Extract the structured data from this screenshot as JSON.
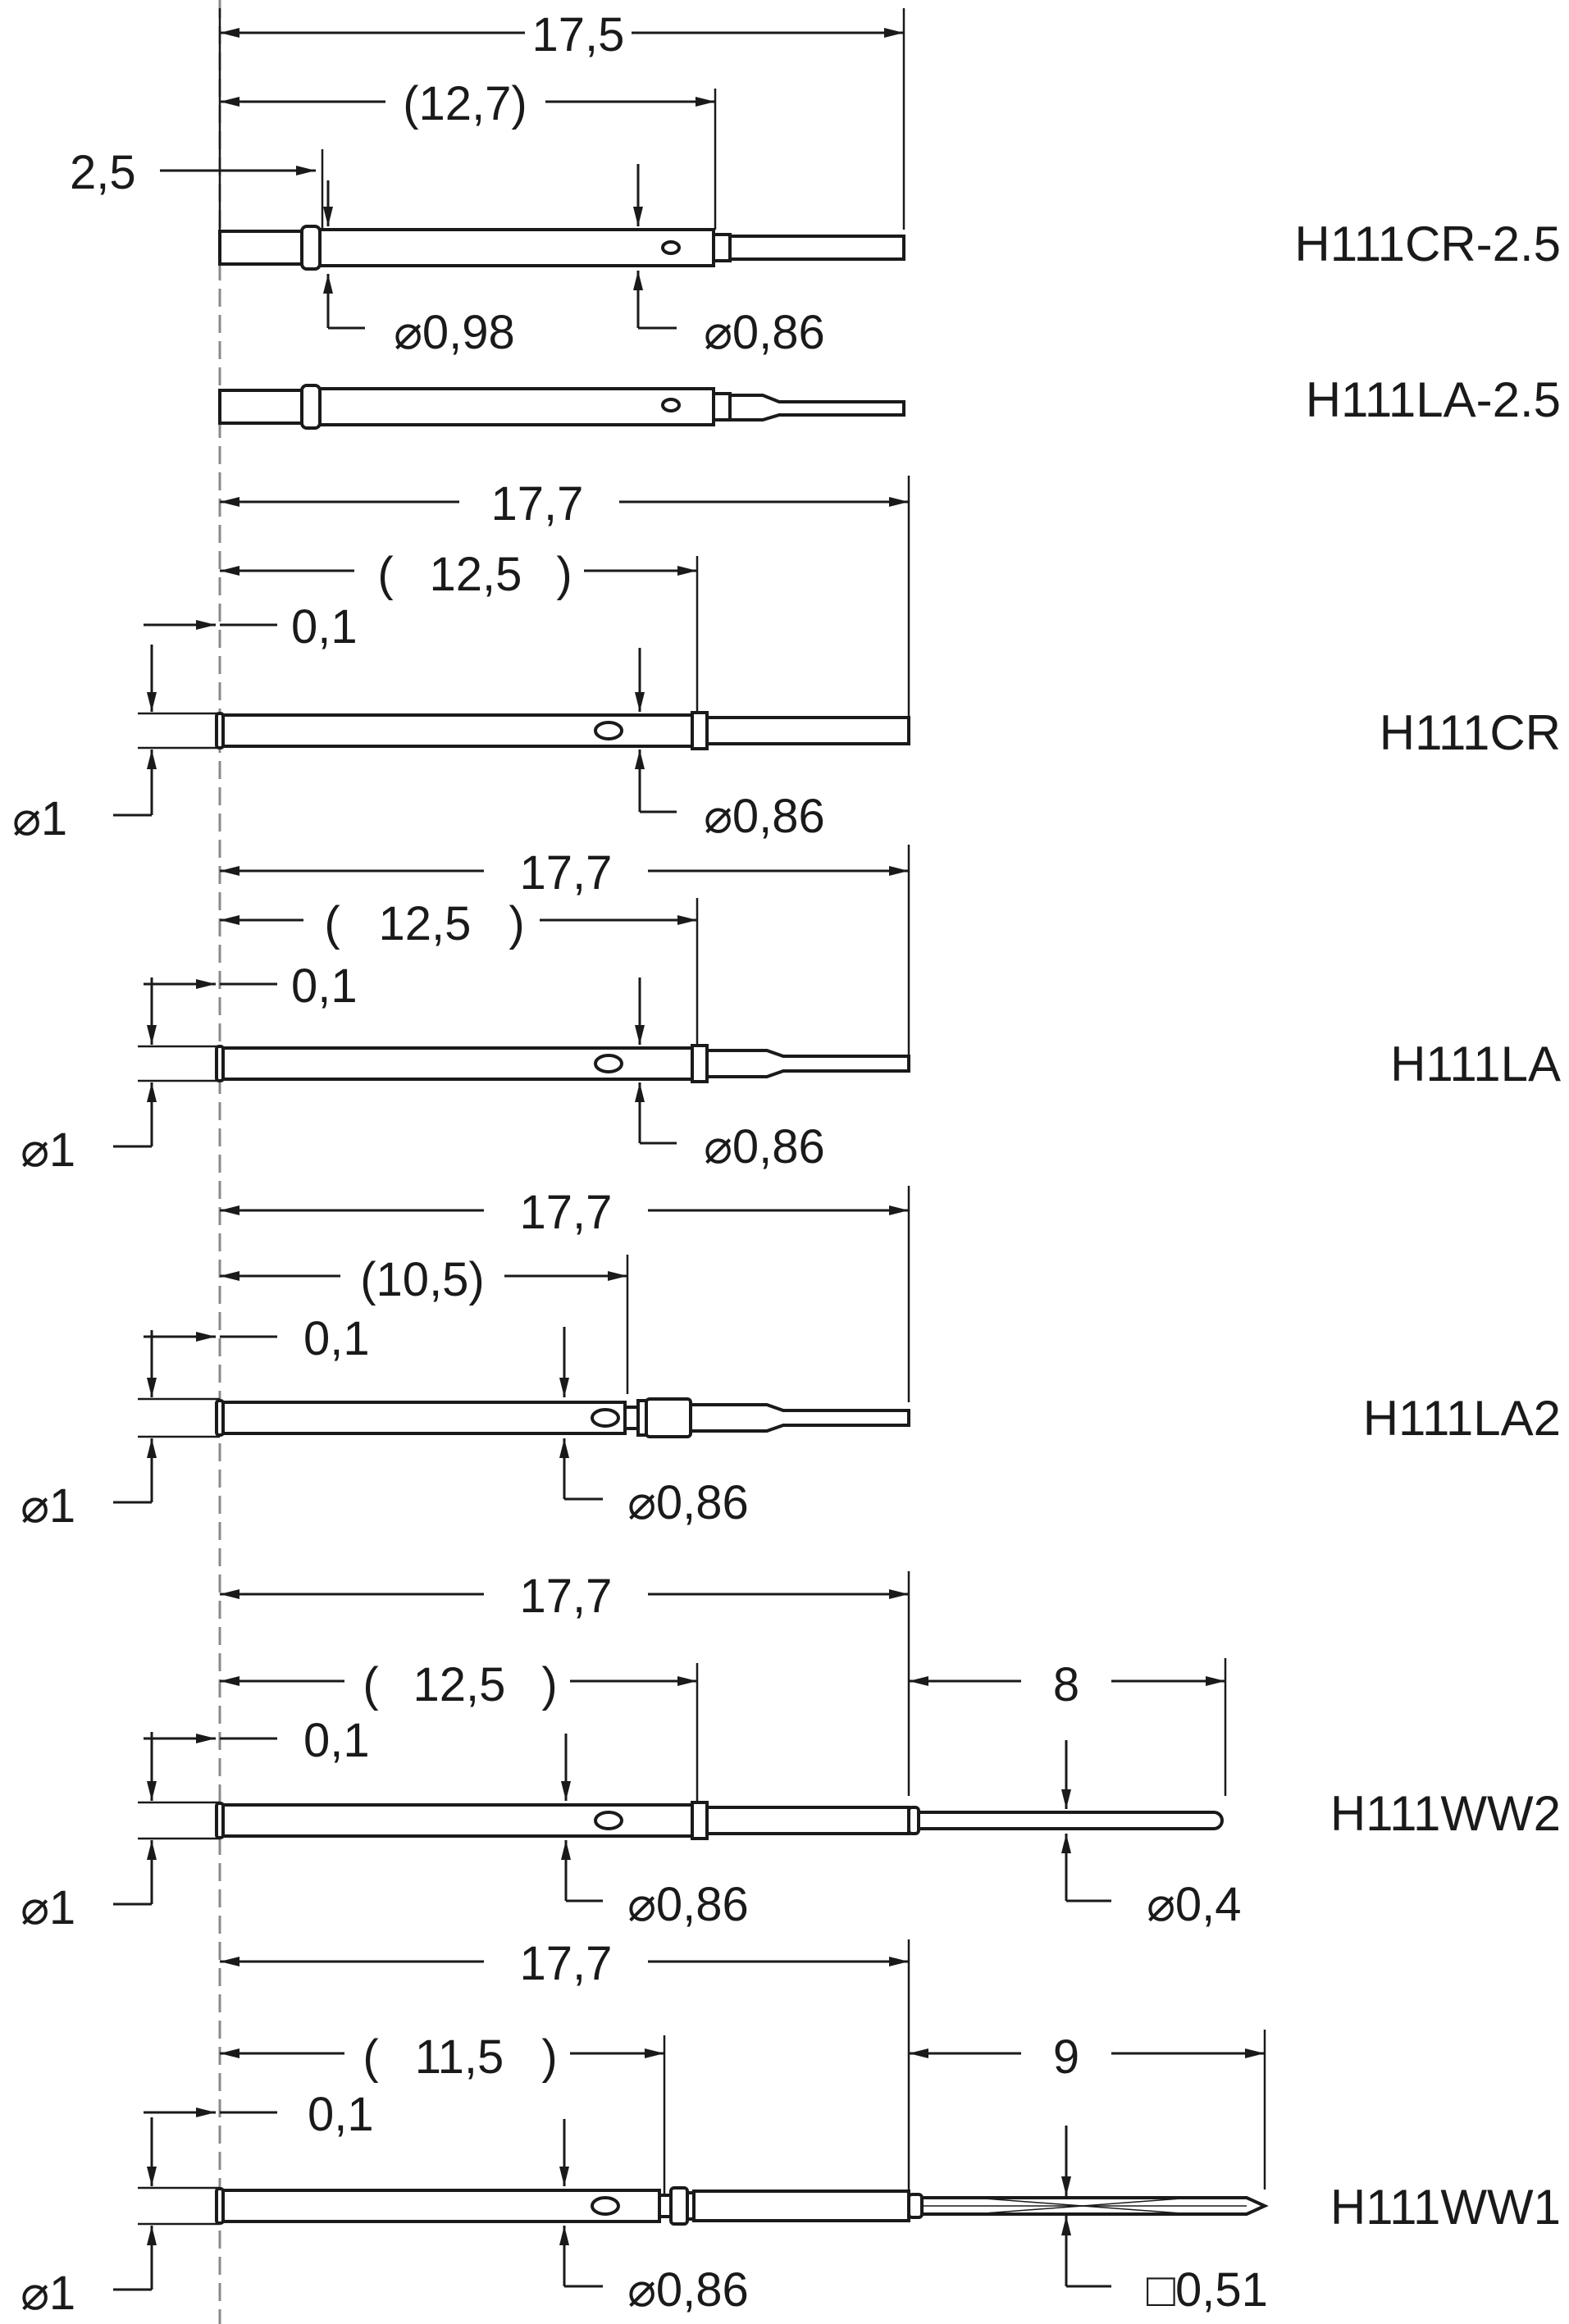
{
  "parts": [
    {
      "model": "H111CR-2.5",
      "dims": {
        "overall": "17,5",
        "ref": "(12,7)",
        "offset": "2,5",
        "dia_a": "⌀0,98",
        "dia_b": "⌀0,86"
      }
    },
    {
      "model": "H111LA-2.5",
      "dims": {}
    },
    {
      "model": "H111CR",
      "dims": {
        "overall": "17,7",
        "ref_open": "(",
        "ref": "12,5",
        "ref_close": ")",
        "offset": "0,1",
        "dia_head": "⌀1",
        "dia_b": "⌀0,86"
      }
    },
    {
      "model": "H111LA",
      "dims": {
        "overall": "17,7",
        "ref_open": "(",
        "ref": "12,5",
        "ref_close": ")",
        "offset": "0,1",
        "dia_head": "⌀1",
        "dia_b": "⌀0,86"
      }
    },
    {
      "model": "H111LA2",
      "dims": {
        "overall": "17,7",
        "ref": "(10,5)",
        "offset": "0,1",
        "dia_head": "⌀1",
        "dia_b": "⌀0,86"
      }
    },
    {
      "model": "H111WW2",
      "dims": {
        "overall": "17,7",
        "ref_open": "(",
        "ref": "12,5",
        "ref_close": ")",
        "tail": "8",
        "offset": "0,1",
        "dia_head": "⌀1",
        "dia_b": "⌀0,86",
        "dia_tail": "⌀0,4"
      }
    },
    {
      "model": "H111WW1",
      "dims": {
        "overall": "17,7",
        "ref_open": "(",
        "ref": "11,5",
        "ref_close": ")",
        "tail": "9",
        "offset": "0,1",
        "dia_head": "⌀1",
        "dia_b": "⌀0,86",
        "sq_tail": "□0,51"
      }
    }
  ]
}
